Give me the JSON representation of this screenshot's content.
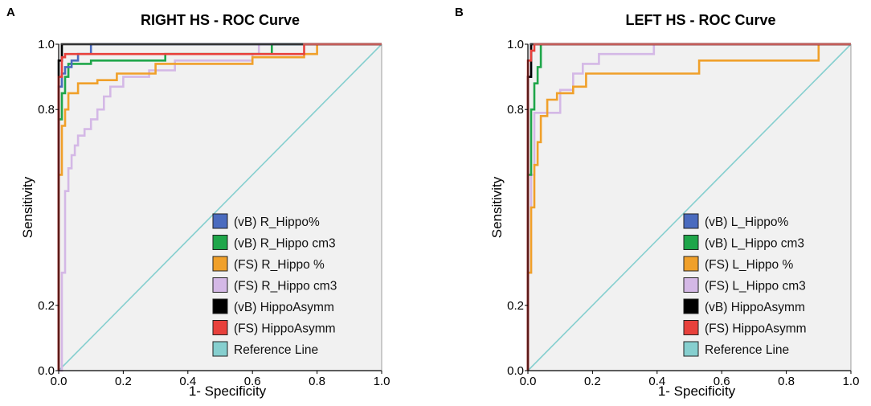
{
  "chart_data": [
    {
      "type": "line",
      "panel_label": "A",
      "title": "RIGHT HS - ROC Curve",
      "xlabel": "1- Specificity",
      "ylabel": "Sensitivity",
      "xlim": [
        0,
        1
      ],
      "ylim": [
        0,
        1
      ],
      "x_ticks": [
        "0.0",
        "0.2",
        "0.4",
        "0.6",
        "0.8",
        "1.0"
      ],
      "y_ticks": [
        "0.0",
        "0.2",
        "0.8",
        "1.0"
      ],
      "legend_position": "bottom-right",
      "series": [
        {
          "name": "(vB) R_Hippo%",
          "color": "#4a6bbf",
          "points": [
            [
              0,
              0
            ],
            [
              0,
              0.87
            ],
            [
              0.01,
              0.87
            ],
            [
              0.01,
              0.91
            ],
            [
              0.02,
              0.91
            ],
            [
              0.02,
              0.93
            ],
            [
              0.04,
              0.93
            ],
            [
              0.04,
              0.95
            ],
            [
              0.06,
              0.95
            ],
            [
              0.06,
              0.97
            ],
            [
              0.1,
              0.97
            ],
            [
              0.1,
              1.0
            ],
            [
              1,
              1.0
            ]
          ]
        },
        {
          "name": "(vB) R_Hippo cm3",
          "color": "#1fa64a",
          "points": [
            [
              0,
              0
            ],
            [
              0,
              0.77
            ],
            [
              0.01,
              0.77
            ],
            [
              0.01,
              0.85
            ],
            [
              0.02,
              0.85
            ],
            [
              0.02,
              0.9
            ],
            [
              0.03,
              0.9
            ],
            [
              0.03,
              0.94
            ],
            [
              0.1,
              0.94
            ],
            [
              0.1,
              0.95
            ],
            [
              0.33,
              0.95
            ],
            [
              0.33,
              0.97
            ],
            [
              0.66,
              0.97
            ],
            [
              0.66,
              1.0
            ],
            [
              1,
              1.0
            ]
          ]
        },
        {
          "name": "(FS) R_Hippo %",
          "color": "#f0a02a",
          "points": [
            [
              0,
              0
            ],
            [
              0,
              0.6
            ],
            [
              0.01,
              0.6
            ],
            [
              0.01,
              0.75
            ],
            [
              0.02,
              0.75
            ],
            [
              0.02,
              0.8
            ],
            [
              0.03,
              0.8
            ],
            [
              0.03,
              0.85
            ],
            [
              0.06,
              0.85
            ],
            [
              0.06,
              0.88
            ],
            [
              0.12,
              0.88
            ],
            [
              0.12,
              0.89
            ],
            [
              0.18,
              0.89
            ],
            [
              0.18,
              0.91
            ],
            [
              0.3,
              0.91
            ],
            [
              0.3,
              0.94
            ],
            [
              0.6,
              0.94
            ],
            [
              0.6,
              0.96
            ],
            [
              0.76,
              0.96
            ],
            [
              0.76,
              0.97
            ],
            [
              0.8,
              0.97
            ],
            [
              0.8,
              1.0
            ],
            [
              1,
              1.0
            ]
          ]
        },
        {
          "name": "(FS) R_Hippo cm3",
          "color": "#d4b8e6",
          "points": [
            [
              0,
              0
            ],
            [
              0.01,
              0.0
            ],
            [
              0.01,
              0.3
            ],
            [
              0.02,
              0.3
            ],
            [
              0.02,
              0.55
            ],
            [
              0.03,
              0.55
            ],
            [
              0.03,
              0.62
            ],
            [
              0.04,
              0.62
            ],
            [
              0.04,
              0.66
            ],
            [
              0.05,
              0.66
            ],
            [
              0.05,
              0.69
            ],
            [
              0.06,
              0.69
            ],
            [
              0.06,
              0.72
            ],
            [
              0.08,
              0.72
            ],
            [
              0.08,
              0.74
            ],
            [
              0.1,
              0.74
            ],
            [
              0.1,
              0.77
            ],
            [
              0.12,
              0.77
            ],
            [
              0.12,
              0.8
            ],
            [
              0.14,
              0.8
            ],
            [
              0.14,
              0.84
            ],
            [
              0.16,
              0.84
            ],
            [
              0.16,
              0.87
            ],
            [
              0.2,
              0.87
            ],
            [
              0.2,
              0.9
            ],
            [
              0.28,
              0.9
            ],
            [
              0.28,
              0.92
            ],
            [
              0.36,
              0.92
            ],
            [
              0.36,
              0.95
            ],
            [
              0.6,
              0.95
            ],
            [
              0.6,
              0.97
            ],
            [
              0.62,
              0.97
            ],
            [
              0.62,
              1.0
            ],
            [
              1,
              1.0
            ]
          ]
        },
        {
          "name": "(vB) HippoAsymm",
          "color": "#000000",
          "points": [
            [
              0,
              0
            ],
            [
              0,
              0.95
            ],
            [
              0.01,
              0.95
            ],
            [
              0.01,
              1.0
            ],
            [
              1,
              1.0
            ]
          ]
        },
        {
          "name": "(FS) HippoAsymm",
          "color": "#e8413c",
          "points": [
            [
              0,
              0
            ],
            [
              0,
              0.9
            ],
            [
              0.01,
              0.9
            ],
            [
              0.01,
              0.96
            ],
            [
              0.02,
              0.96
            ],
            [
              0.02,
              0.97
            ],
            [
              0.76,
              0.97
            ],
            [
              0.76,
              1.0
            ],
            [
              1,
              1.0
            ]
          ]
        },
        {
          "name": "Reference Line",
          "color": "#86cfcf",
          "points": [
            [
              0,
              0
            ],
            [
              1,
              1
            ]
          ]
        }
      ]
    },
    {
      "type": "line",
      "panel_label": "B",
      "title": "LEFT HS - ROC Curve",
      "xlabel": "1- Specificity",
      "ylabel": "Sensitivity",
      "xlim": [
        0,
        1
      ],
      "ylim": [
        0,
        1
      ],
      "x_ticks": [
        "0.0",
        "0.2",
        "0.4",
        "0.6",
        "0.8",
        "1.0"
      ],
      "y_ticks": [
        "0.0",
        "0.2",
        "0.8",
        "1.0"
      ],
      "legend_position": "bottom-right",
      "series": [
        {
          "name": "(vB) L_Hippo%",
          "color": "#4a6bbf",
          "points": [
            [
              0,
              0
            ],
            [
              0,
              0.9
            ],
            [
              0.01,
              0.9
            ],
            [
              0.01,
              1.0
            ],
            [
              1,
              1.0
            ]
          ]
        },
        {
          "name": "(vB) L_Hippo cm3",
          "color": "#1fa64a",
          "points": [
            [
              0,
              0
            ],
            [
              0,
              0.6
            ],
            [
              0.01,
              0.6
            ],
            [
              0.01,
              0.8
            ],
            [
              0.02,
              0.8
            ],
            [
              0.02,
              0.88
            ],
            [
              0.03,
              0.88
            ],
            [
              0.03,
              0.93
            ],
            [
              0.04,
              0.93
            ],
            [
              0.04,
              1.0
            ],
            [
              1,
              1.0
            ]
          ]
        },
        {
          "name": "(FS) L_Hippo %",
          "color": "#f0a02a",
          "points": [
            [
              0,
              0
            ],
            [
              0,
              0.3
            ],
            [
              0.01,
              0.3
            ],
            [
              0.01,
              0.5
            ],
            [
              0.02,
              0.5
            ],
            [
              0.02,
              0.63
            ],
            [
              0.03,
              0.63
            ],
            [
              0.03,
              0.7
            ],
            [
              0.04,
              0.7
            ],
            [
              0.04,
              0.78
            ],
            [
              0.06,
              0.78
            ],
            [
              0.06,
              0.83
            ],
            [
              0.09,
              0.83
            ],
            [
              0.09,
              0.85
            ],
            [
              0.14,
              0.85
            ],
            [
              0.14,
              0.87
            ],
            [
              0.18,
              0.87
            ],
            [
              0.18,
              0.91
            ],
            [
              0.53,
              0.91
            ],
            [
              0.53,
              0.95
            ],
            [
              0.9,
              0.95
            ],
            [
              0.9,
              1.0
            ],
            [
              1,
              1.0
            ]
          ]
        },
        {
          "name": "(FS) L_Hippo cm3",
          "color": "#d4b8e6",
          "points": [
            [
              0,
              0
            ],
            [
              0,
              0.3
            ],
            [
              0.01,
              0.3
            ],
            [
              0.01,
              0.6
            ],
            [
              0.02,
              0.6
            ],
            [
              0.02,
              0.79
            ],
            [
              0.1,
              0.79
            ],
            [
              0.1,
              0.86
            ],
            [
              0.14,
              0.86
            ],
            [
              0.14,
              0.91
            ],
            [
              0.17,
              0.91
            ],
            [
              0.17,
              0.94
            ],
            [
              0.22,
              0.94
            ],
            [
              0.22,
              0.97
            ],
            [
              0.39,
              0.97
            ],
            [
              0.39,
              1.0
            ],
            [
              1,
              1.0
            ]
          ]
        },
        {
          "name": "(vB) HippoAsymm",
          "color": "#000000",
          "points": [
            [
              0,
              0
            ],
            [
              0,
              0.9
            ],
            [
              0.01,
              0.9
            ],
            [
              0.01,
              1.0
            ],
            [
              1,
              1.0
            ]
          ]
        },
        {
          "name": "(FS) HippoAsymm",
          "color": "#e8413c",
          "points": [
            [
              0,
              0
            ],
            [
              0,
              0.95
            ],
            [
              0.01,
              0.95
            ],
            [
              0.01,
              0.98
            ],
            [
              0.02,
              0.98
            ],
            [
              0.02,
              1.0
            ],
            [
              1,
              1.0
            ]
          ]
        },
        {
          "name": "Reference Line",
          "color": "#86cfcf",
          "points": [
            [
              0,
              0
            ],
            [
              1,
              1
            ]
          ]
        }
      ]
    }
  ]
}
